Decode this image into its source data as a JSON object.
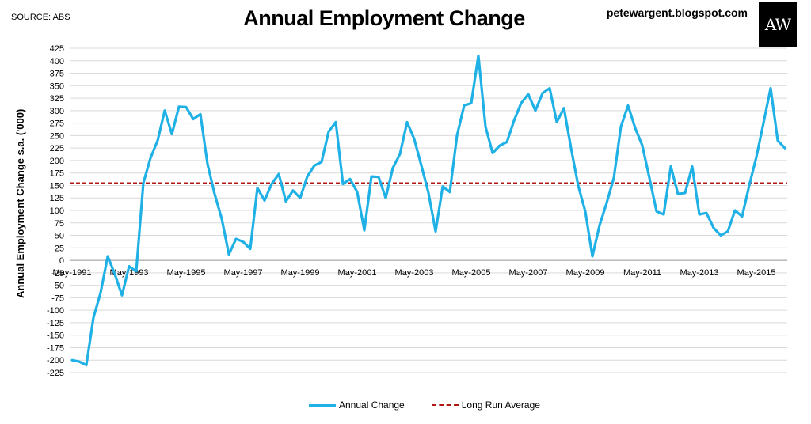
{
  "source": "SOURCE: ABS",
  "site": "petewargent.blogspot.com",
  "logo_text": "AW",
  "chart_data": {
    "type": "line",
    "title": "Annual Employment Change",
    "ylabel": "Annual Employment Change s.a. ('000)",
    "xlabel": "",
    "ylim": [
      -225,
      425
    ],
    "ytick_step": 25,
    "grid": true,
    "legend_position": "bottom",
    "x_tick_labels": [
      "May-1991",
      "May-1993",
      "May-1995",
      "May-1997",
      "May-1999",
      "May-2001",
      "May-2003",
      "May-2005",
      "May-2007",
      "May-2009",
      "May-2011",
      "May-2013",
      "May-2015"
    ],
    "series": [
      {
        "name": "Annual Change",
        "color": "#1fb1e6",
        "values": [
          -200,
          -203,
          -210,
          -115,
          -65,
          8,
          -28,
          -70,
          -12,
          -22,
          155,
          205,
          240,
          300,
          253,
          308,
          307,
          283,
          293,
          193,
          133,
          83,
          12,
          43,
          37,
          23,
          145,
          120,
          153,
          173,
          118,
          140,
          125,
          168,
          190,
          197,
          258,
          277,
          153,
          163,
          137,
          60,
          168,
          167,
          125,
          185,
          213,
          277,
          243,
          190,
          135,
          58,
          148,
          137,
          250,
          310,
          315,
          410,
          268,
          215,
          230,
          237,
          280,
          315,
          333,
          300,
          335,
          345,
          277,
          305,
          225,
          150,
          98,
          8,
          70,
          115,
          165,
          268,
          310,
          265,
          230,
          165,
          98,
          92,
          188,
          133,
          135,
          188,
          92,
          95,
          65,
          50,
          58,
          100,
          88,
          150,
          207,
          275,
          345,
          240,
          225
        ]
      },
      {
        "name": "Long Run Average",
        "color": "#b01818",
        "value": 155
      }
    ]
  }
}
